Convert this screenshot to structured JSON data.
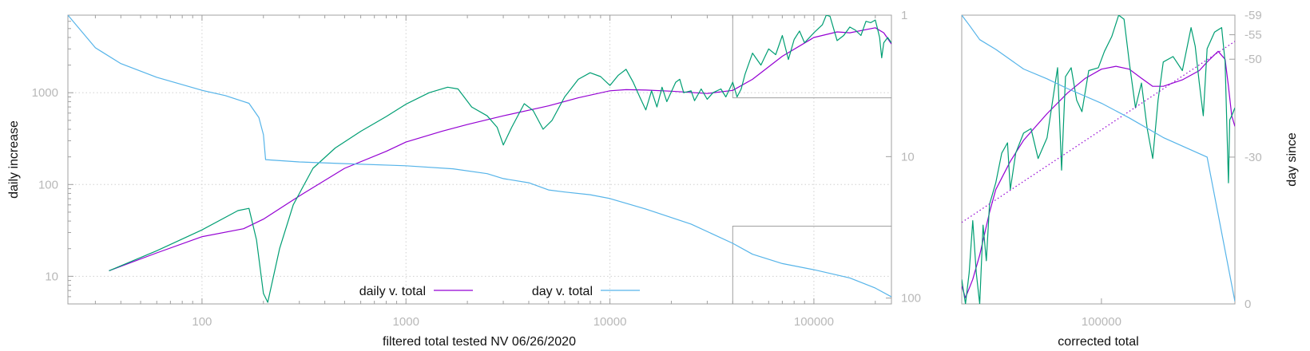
{
  "colors": {
    "daily_smooth": "#9400d3",
    "daily_raw": "#009e73",
    "day": "#56b4e9",
    "frame": "#a0a0a0",
    "grid": "#d0d0d0",
    "tick_text": "#b8b8b8"
  },
  "chart_data": [
    {
      "type": "line",
      "xlabel": "filtered total tested NV 06/26/2020",
      "ylabel": "daily increase",
      "x_scale": "log",
      "y_scale": "log",
      "xlim": [
        22,
        240000
      ],
      "ylim": [
        5,
        7000
      ],
      "y2_scale": "log",
      "y2_reversed": true,
      "y2lim": [
        1,
        110
      ],
      "grid": true,
      "legend_position": "bottom-center",
      "x_ticks": [
        {
          "value": 100,
          "label": "100"
        },
        {
          "value": 1000,
          "label": "1000"
        },
        {
          "value": 10000,
          "label": "10000"
        },
        {
          "value": 100000,
          "label": "100000"
        }
      ],
      "y_ticks": [
        {
          "value": 10,
          "label": "10"
        },
        {
          "value": 100,
          "label": "100"
        },
        {
          "value": 1000,
          "label": "1000"
        }
      ],
      "y2_ticks": [
        {
          "value": 1,
          "label": "1"
        },
        {
          "value": 10,
          "label": "10"
        },
        {
          "value": 100,
          "label": "100"
        }
      ],
      "zoom_box": {
        "x": [
          40000,
          240000
        ],
        "y": [
          880,
          7000
        ],
        "y2": [
          31,
          110
        ]
      },
      "series": [
        {
          "name": "daily v. total",
          "axis": "y",
          "color_key": "daily_smooth",
          "points": [
            [
              35,
              11.5
            ],
            [
              60,
              18
            ],
            [
              100,
              27
            ],
            [
              160,
              33
            ],
            [
              200,
              42
            ],
            [
              300,
              75
            ],
            [
              500,
              150
            ],
            [
              800,
              230
            ],
            [
              1000,
              290
            ],
            [
              1500,
              380
            ],
            [
              2000,
              450
            ],
            [
              3000,
              560
            ],
            [
              5000,
              720
            ],
            [
              7000,
              880
            ],
            [
              10000,
              1050
            ],
            [
              12000,
              1080
            ],
            [
              15000,
              1070
            ],
            [
              20000,
              1040
            ],
            [
              30000,
              980
            ],
            [
              40000,
              1060
            ],
            [
              50000,
              1400
            ],
            [
              70000,
              2500
            ],
            [
              100000,
              4000
            ],
            [
              130000,
              4600
            ],
            [
              150000,
              4500
            ],
            [
              200000,
              5100
            ],
            [
              220000,
              4500
            ],
            [
              240000,
              3400
            ]
          ]
        },
        {
          "name": "",
          "axis": "y",
          "color_key": "daily_raw",
          "points": [
            [
              35,
              11.5
            ],
            [
              60,
              19
            ],
            [
              100,
              32
            ],
            [
              150,
              52
            ],
            [
              170,
              55
            ],
            [
              185,
              25
            ],
            [
              200,
              6.5
            ],
            [
              210,
              5.2
            ],
            [
              240,
              20
            ],
            [
              280,
              60
            ],
            [
              350,
              150
            ],
            [
              450,
              250
            ],
            [
              600,
              380
            ],
            [
              800,
              550
            ],
            [
              1000,
              750
            ],
            [
              1300,
              1000
            ],
            [
              1600,
              1150
            ],
            [
              1800,
              1100
            ],
            [
              2100,
              700
            ],
            [
              2500,
              560
            ],
            [
              2800,
              420
            ],
            [
              3000,
              270
            ],
            [
              3300,
              420
            ],
            [
              3800,
              760
            ],
            [
              4200,
              640
            ],
            [
              4700,
              400
            ],
            [
              5200,
              500
            ],
            [
              6000,
              900
            ],
            [
              7000,
              1400
            ],
            [
              8000,
              1650
            ],
            [
              9000,
              1500
            ],
            [
              10000,
              1200
            ],
            [
              11000,
              1550
            ],
            [
              12000,
              1800
            ],
            [
              13000,
              1300
            ],
            [
              14000,
              900
            ],
            [
              15000,
              650
            ],
            [
              16000,
              1050
            ],
            [
              17000,
              700
            ],
            [
              18000,
              1150
            ],
            [
              19000,
              800
            ],
            [
              21000,
              1300
            ],
            [
              22000,
              1400
            ],
            [
              23000,
              1000
            ],
            [
              25000,
              1050
            ],
            [
              26000,
              820
            ],
            [
              28000,
              1100
            ],
            [
              30000,
              850
            ],
            [
              32000,
              1000
            ],
            [
              35000,
              1100
            ],
            [
              37000,
              900
            ],
            [
              40000,
              1300
            ],
            [
              42000,
              900
            ],
            [
              44000,
              1100
            ],
            [
              46000,
              1600
            ],
            [
              50000,
              2700
            ],
            [
              55000,
              2000
            ],
            [
              60000,
              3000
            ],
            [
              65000,
              2600
            ],
            [
              70000,
              4200
            ],
            [
              75000,
              2300
            ],
            [
              80000,
              3800
            ],
            [
              85000,
              4700
            ],
            [
              90000,
              3500
            ],
            [
              100000,
              4500
            ],
            [
              110000,
              5500
            ],
            [
              115000,
              7000
            ],
            [
              120000,
              6800
            ],
            [
              130000,
              3700
            ],
            [
              140000,
              4200
            ],
            [
              150000,
              5200
            ],
            [
              160000,
              4800
            ],
            [
              170000,
              4200
            ],
            [
              180000,
              6000
            ],
            [
              190000,
              5800
            ],
            [
              200000,
              6200
            ],
            [
              205000,
              5000
            ],
            [
              210000,
              4000
            ],
            [
              215000,
              2400
            ],
            [
              220000,
              3500
            ],
            [
              230000,
              4000
            ],
            [
              240000,
              3500
            ]
          ]
        },
        {
          "name": "day v. total",
          "axis": "y2",
          "color_key": "day",
          "points": [
            [
              22,
              1
            ],
            [
              30,
              1.7
            ],
            [
              40,
              2.2
            ],
            [
              60,
              2.75
            ],
            [
              100,
              3.4
            ],
            [
              130,
              3.7
            ],
            [
              170,
              4.2
            ],
            [
              190,
              5.3
            ],
            [
              200,
              7
            ],
            [
              205,
              10.5
            ],
            [
              300,
              10.9
            ],
            [
              500,
              11.2
            ],
            [
              1000,
              11.6
            ],
            [
              1700,
              12.2
            ],
            [
              2500,
              13.2
            ],
            [
              3000,
              14.3
            ],
            [
              4000,
              15.3
            ],
            [
              5000,
              17.2
            ],
            [
              6000,
              17.8
            ],
            [
              8000,
              18.6
            ],
            [
              10000,
              19.8
            ],
            [
              15000,
              23.5
            ],
            [
              25000,
              30
            ],
            [
              40000,
              41
            ],
            [
              50000,
              49
            ],
            [
              70000,
              57
            ],
            [
              100000,
              63
            ],
            [
              150000,
              72
            ],
            [
              200000,
              85
            ],
            [
              240000,
              98
            ]
          ]
        }
      ]
    },
    {
      "type": "line",
      "xlabel": "corrected total",
      "ylabel": "",
      "y2label": "day since",
      "x_scale": "log",
      "xlim": [
        40000,
        240000
      ],
      "ylim": [
        880,
        7000
      ],
      "y2lim": [
        0,
        -59
      ],
      "grid": false,
      "x_ticks": [
        {
          "value": 100000,
          "label": "100000"
        }
      ],
      "y2_ticks": [
        {
          "value": -59,
          "label": "-59"
        },
        {
          "value": -55,
          "label": "-55"
        },
        {
          "value": -50,
          "label": "-50"
        },
        {
          "value": -30,
          "label": "-30"
        },
        {
          "value": 0,
          "label": "0"
        }
      ],
      "series": [
        {
          "name": "",
          "axis": "y",
          "color_key": "daily_smooth",
          "points": [
            [
              40000,
              1000
            ],
            [
              41000,
              920
            ],
            [
              43000,
              1050
            ],
            [
              45000,
              1250
            ],
            [
              48000,
              1700
            ],
            [
              50000,
              2000
            ],
            [
              55000,
              2450
            ],
            [
              60000,
              2850
            ],
            [
              70000,
              3450
            ],
            [
              80000,
              4000
            ],
            [
              90000,
              4450
            ],
            [
              100000,
              4750
            ],
            [
              110000,
              4850
            ],
            [
              120000,
              4750
            ],
            [
              130000,
              4450
            ],
            [
              140000,
              4200
            ],
            [
              150000,
              4200
            ],
            [
              170000,
              4400
            ],
            [
              190000,
              4700
            ],
            [
              200000,
              5000
            ],
            [
              215000,
              5400
            ],
            [
              225000,
              5100
            ],
            [
              230000,
              4200
            ],
            [
              235000,
              3400
            ],
            [
              240000,
              3150
            ]
          ]
        },
        {
          "name": "",
          "axis": "y",
          "color_key": "daily_raw",
          "points": [
            [
              40000,
              1050
            ],
            [
              41000,
              880
            ],
            [
              42000,
              1100
            ],
            [
              43000,
              1600
            ],
            [
              44000,
              1100
            ],
            [
              45000,
              880
            ],
            [
              46000,
              1550
            ],
            [
              47000,
              1200
            ],
            [
              48000,
              1800
            ],
            [
              50000,
              2100
            ],
            [
              52000,
              2600
            ],
            [
              54000,
              2800
            ],
            [
              55000,
              2000
            ],
            [
              57000,
              2600
            ],
            [
              60000,
              3000
            ],
            [
              63000,
              3100
            ],
            [
              66000,
              2500
            ],
            [
              70000,
              2900
            ],
            [
              75000,
              4800
            ],
            [
              77000,
              2300
            ],
            [
              79000,
              4500
            ],
            [
              82000,
              4800
            ],
            [
              85000,
              3800
            ],
            [
              88000,
              3500
            ],
            [
              92000,
              4700
            ],
            [
              98000,
              4800
            ],
            [
              102000,
              5400
            ],
            [
              107000,
              6000
            ],
            [
              112000,
              7000
            ],
            [
              116000,
              6800
            ],
            [
              120000,
              5000
            ],
            [
              125000,
              3600
            ],
            [
              130000,
              4300
            ],
            [
              135000,
              3100
            ],
            [
              140000,
              2500
            ],
            [
              145000,
              3800
            ],
            [
              150000,
              5000
            ],
            [
              160000,
              5200
            ],
            [
              170000,
              4700
            ],
            [
              180000,
              6400
            ],
            [
              185000,
              5600
            ],
            [
              190000,
              4300
            ],
            [
              195000,
              3400
            ],
            [
              200000,
              5500
            ],
            [
              210000,
              6200
            ],
            [
              220000,
              6400
            ],
            [
              225000,
              5000
            ],
            [
              230000,
              2100
            ],
            [
              232000,
              3300
            ],
            [
              235000,
              3400
            ],
            [
              240000,
              3600
            ]
          ]
        },
        {
          "name": "",
          "axis": "y",
          "color_key": "daily_smooth",
          "dashed": true,
          "points": [
            [
              40000,
              1580
            ],
            [
              240000,
              5800
            ]
          ]
        },
        {
          "name": "",
          "axis": "y2",
          "color_key": "day",
          "points": [
            [
              40000,
              -59
            ],
            [
              42000,
              -57
            ],
            [
              45000,
              -54
            ],
            [
              50000,
              -52
            ],
            [
              60000,
              -48
            ],
            [
              70000,
              -46
            ],
            [
              80000,
              -44
            ],
            [
              100000,
              -41
            ],
            [
              120000,
              -38
            ],
            [
              150000,
              -34
            ],
            [
              200000,
              -30
            ],
            [
              240000,
              -0.5
            ]
          ]
        }
      ]
    }
  ]
}
